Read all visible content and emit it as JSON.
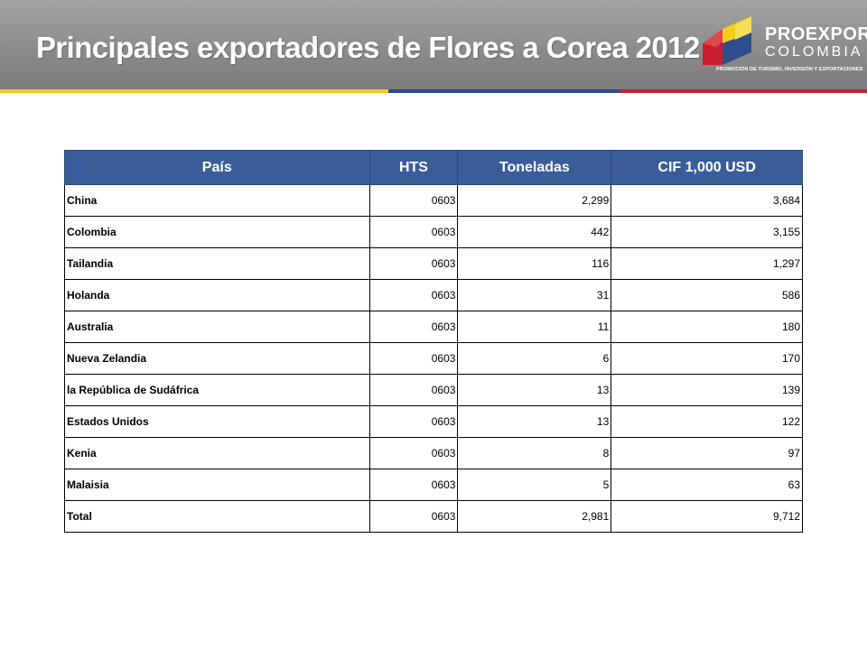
{
  "header": {
    "title": "Principales exportadores de Flores a Corea 2012"
  },
  "logo": {
    "name_line1": "PROEXPORT",
    "name_line2": "COLOMBIA",
    "tagline": "PROMOCIÓN DE TURISMO, INVERSIÓN Y EXPORTACIONES",
    "colors": {
      "yellow": "#f4cc1e",
      "blue": "#2d4e8e",
      "red": "#c8202f"
    }
  },
  "table": {
    "header_color": "#3a5d9a",
    "columns": [
      "País",
      "HTS",
      "Toneladas",
      "CIF 1,000 USD"
    ],
    "rows": [
      [
        "China",
        "0603",
        "2,299",
        "3,684"
      ],
      [
        "Colombia",
        "0603",
        "442",
        "3,155"
      ],
      [
        "Tailandia",
        "0603",
        "116",
        "1,297"
      ],
      [
        "Holanda",
        "0603",
        "31",
        "586"
      ],
      [
        "Australia",
        "0603",
        "11",
        "180"
      ],
      [
        "Nueva Zelandia",
        "0603",
        "6",
        "170"
      ],
      [
        "la República de Sudáfrica",
        "0603",
        "13",
        "139"
      ],
      [
        "Estados Unidos",
        "0603",
        "13",
        "122"
      ],
      [
        "Kenia",
        "0603",
        "8",
        "97"
      ],
      [
        "Malaisia",
        "0603",
        "5",
        "63"
      ],
      [
        "Total",
        "0603",
        "2,981",
        "9,712"
      ]
    ]
  }
}
